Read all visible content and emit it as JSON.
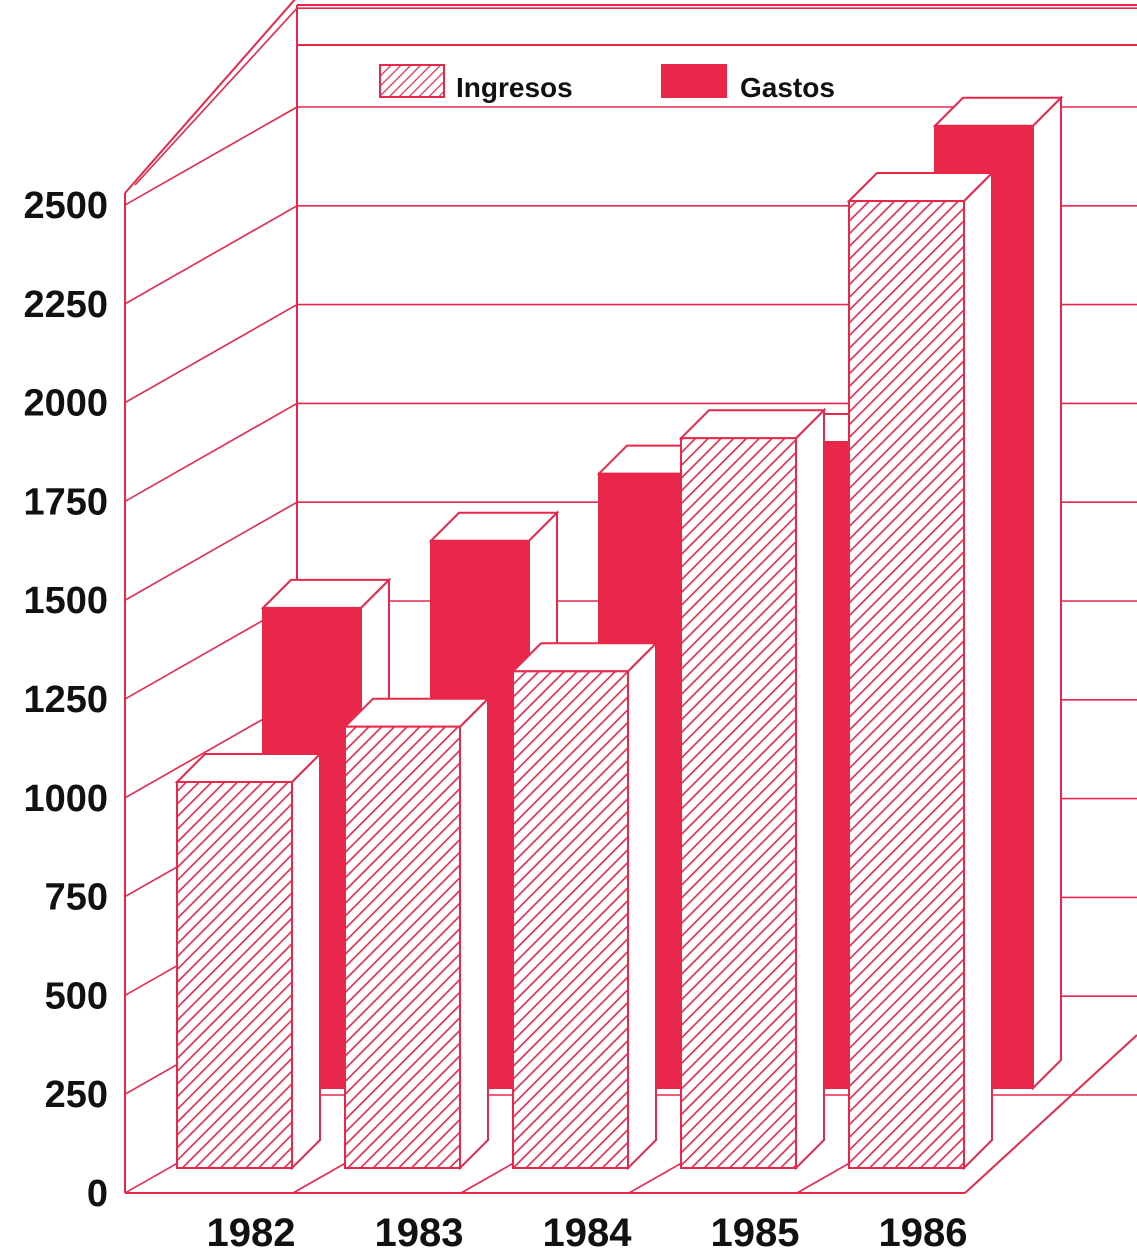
{
  "chart_data": {
    "type": "bar",
    "categories": [
      "1982",
      "1983",
      "1984",
      "1985",
      "1986"
    ],
    "series": [
      {
        "name": "Ingresos",
        "values": [
          1040,
          1180,
          1320,
          1910,
          2510
        ],
        "fill": "hatched"
      },
      {
        "name": "Gastos",
        "values": [
          1030,
          1200,
          1370,
          1450,
          2250
        ],
        "fill": "solid"
      }
    ],
    "ylim": [
      0,
      2500
    ],
    "yticks": [
      "0",
      "250",
      "500",
      "750",
      "1000",
      "1250",
      "1500",
      "1750",
      "2000",
      "2250",
      "2500"
    ],
    "grid": true,
    "legend_position": "top-center",
    "colors": {
      "line": "#e8274b",
      "fill": "#e8274b",
      "text": "#111111",
      "background": "#ffffff"
    }
  }
}
